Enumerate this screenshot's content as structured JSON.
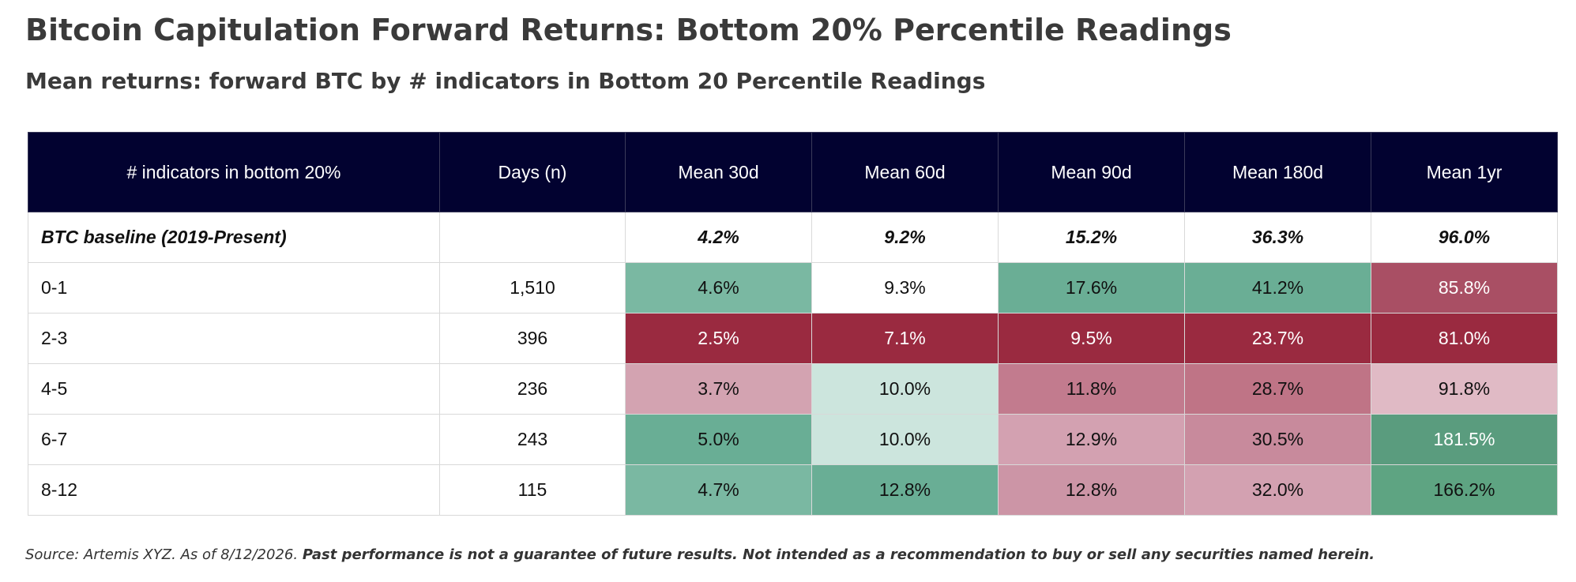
{
  "chart_data": {
    "type": "table",
    "title": "Bitcoin Capitulation Forward Returns: Bottom 20% Percentile Readings",
    "subtitle": "Mean returns: forward BTC by # indicators in Bottom 20 Percentile Readings",
    "columns": [
      "# indicators in bottom 20%",
      "Days (n)",
      "Mean 30d",
      "Mean 60d",
      "Mean 90d",
      "Mean 180d",
      "Mean 1yr"
    ],
    "baseline": {
      "label": "BTC baseline (2019-Present)",
      "days": "",
      "values": [
        "4.2%",
        "9.2%",
        "15.2%",
        "36.3%",
        "96.0%"
      ]
    },
    "rows": [
      {
        "label": "0-1",
        "days": "1,510",
        "values": [
          "4.6%",
          "9.3%",
          "17.6%",
          "41.2%",
          "85.8%"
        ]
      },
      {
        "label": "2-3",
        "days": "396",
        "values": [
          "2.5%",
          "7.1%",
          "9.5%",
          "23.7%",
          "81.0%"
        ]
      },
      {
        "label": "4-5",
        "days": "236",
        "values": [
          "3.7%",
          "10.0%",
          "11.8%",
          "28.7%",
          "91.8%"
        ]
      },
      {
        "label": "6-7",
        "days": "243",
        "values": [
          "5.0%",
          "10.0%",
          "12.9%",
          "30.5%",
          "181.5%"
        ]
      },
      {
        "label": "8-12",
        "days": "115",
        "values": [
          "4.7%",
          "12.8%",
          "12.8%",
          "32.0%",
          "166.2%"
        ]
      }
    ],
    "cell_colors": [
      [
        "#7ab8a2",
        "#ffffff",
        "#6aae95",
        "#6aae95",
        "#a94f64"
      ],
      [
        "#9a2a40",
        "#9a2a40",
        "#9a2a40",
        "#9a2a40",
        "#9a2a40"
      ],
      [
        "#d3a3b1",
        "#cce5dd",
        "#c27b8e",
        "#bf7486",
        "#e0bac5"
      ],
      [
        "#69ae95",
        "#cce5dd",
        "#d3a1b1",
        "#c88a9c",
        "#5a9c7e"
      ],
      [
        "#7ab8a2",
        "#69ae95",
        "#cc95a6",
        "#d3a1b1",
        "#5ea482"
      ]
    ],
    "cell_text_colors": [
      [
        "#111111",
        "#111111",
        "#111111",
        "#111111",
        "#ffffff"
      ],
      [
        "#ffffff",
        "#ffffff",
        "#ffffff",
        "#ffffff",
        "#ffffff"
      ],
      [
        "#111111",
        "#111111",
        "#111111",
        "#111111",
        "#111111"
      ],
      [
        "#111111",
        "#111111",
        "#111111",
        "#111111",
        "#ffffff"
      ],
      [
        "#111111",
        "#111111",
        "#111111",
        "#111111",
        "#111111"
      ]
    ],
    "header_color": "#020230"
  },
  "footer": {
    "source": "Source: Artemis XYZ. As of 8/12/2026. ",
    "disclaimer": "Past performance is not a guarantee of future results. Not intended as a recommendation to buy or sell any securities named herein."
  }
}
